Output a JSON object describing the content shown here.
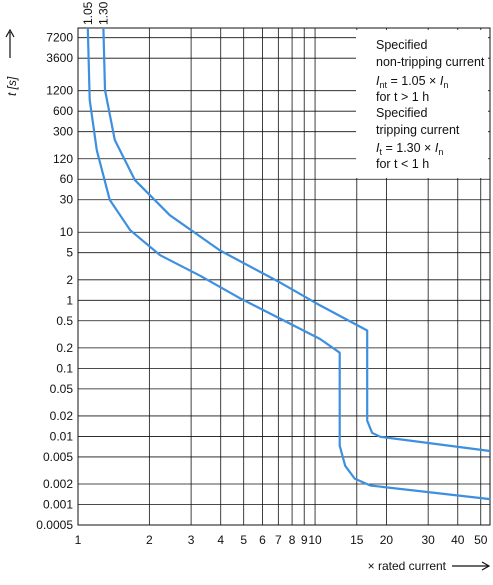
{
  "chart_data": {
    "type": "line",
    "log_x": true,
    "log_y": true,
    "grid": true,
    "xlabel": "× rated current",
    "ylabel": "t [s]",
    "xlim": [
      1,
      54.7
    ],
    "ylim": [
      0.0005,
      10000
    ],
    "xticks": [
      1,
      2,
      3,
      4,
      5,
      6,
      7,
      8,
      9,
      10,
      15,
      20,
      30,
      40,
      50
    ],
    "yticks": [
      7200,
      3600,
      1200,
      600,
      300,
      120,
      60,
      30,
      10,
      5,
      2,
      1,
      0.5,
      0.2,
      0.1,
      0.05,
      0.02,
      0.01,
      0.005,
      0.002,
      0.001,
      0.0005
    ],
    "series": [
      {
        "name": "1.05",
        "color": "#3d8fe0",
        "x": [
          1.1,
          1.12,
          1.2,
          1.36,
          1.66,
          2.22,
          3.27,
          4.83,
          7.11,
          10.5,
          12.7,
          12.7,
          13.4,
          14.7,
          17.1,
          54.7
        ],
        "values": [
          10000,
          880,
          160,
          30,
          10.7,
          4.6,
          2.3,
          1.07,
          0.54,
          0.27,
          0.17,
          0.0073,
          0.0037,
          0.0024,
          0.0019,
          0.0012
        ]
      },
      {
        "name": "1.30",
        "color": "#3d8fe0",
        "x": [
          1.28,
          1.3,
          1.43,
          1.74,
          2.44,
          3.97,
          7.11,
          10.5,
          16.6,
          16.6,
          17.4,
          18.8,
          54.7
        ],
        "values": [
          10000,
          1230,
          226,
          58,
          17.8,
          5.4,
          1.83,
          0.84,
          0.36,
          0.017,
          0.0113,
          0.0099,
          0.0061
        ]
      }
    ],
    "annotation": {
      "l1": "Specified",
      "l2": "non-tripping current",
      "f1": {
        "i": "I",
        "sub": "nt",
        "rest": " = 1.05 × ",
        "i2": "I",
        "sub2": "n"
      },
      "l3": "for t > 1 h",
      "l4": "Specified",
      "l5": "tripping current",
      "f2": {
        "i": "I",
        "sub": "t",
        "rest": " = 1.30 × ",
        "i2": "I",
        "sub2": "n"
      },
      "l6": "for t < 1 h"
    }
  }
}
